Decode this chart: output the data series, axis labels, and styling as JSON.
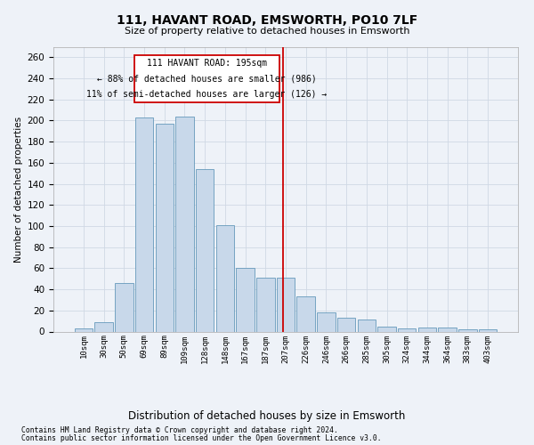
{
  "title": "111, HAVANT ROAD, EMSWORTH, PO10 7LF",
  "subtitle": "Size of property relative to detached houses in Emsworth",
  "xlabel": "Distribution of detached houses by size in Emsworth",
  "ylabel": "Number of detached properties",
  "bar_color": "#c8d8ea",
  "bar_edge_color": "#6699bb",
  "grid_color": "#d0d8e4",
  "bg_color": "#eef2f8",
  "vline_color": "#cc0000",
  "annotation_text_line1": "111 HAVANT ROAD: 195sqm",
  "annotation_text_line2": "← 88% of detached houses are smaller (986)",
  "annotation_text_line3": "11% of semi-detached houses are larger (126) →",
  "annotation_box_color": "#cc0000",
  "categories": [
    "10sqm",
    "30sqm",
    "50sqm",
    "69sqm",
    "89sqm",
    "109sqm",
    "128sqm",
    "148sqm",
    "167sqm",
    "187sqm",
    "207sqm",
    "226sqm",
    "246sqm",
    "266sqm",
    "285sqm",
    "305sqm",
    "324sqm",
    "344sqm",
    "364sqm",
    "383sqm",
    "403sqm"
  ],
  "values": [
    3,
    9,
    46,
    203,
    197,
    204,
    154,
    101,
    60,
    51,
    51,
    33,
    18,
    13,
    11,
    5,
    3,
    4,
    4,
    2,
    2
  ],
  "ylim": [
    0,
    270
  ],
  "yticks": [
    0,
    20,
    40,
    60,
    80,
    100,
    120,
    140,
    160,
    180,
    200,
    220,
    240,
    260
  ],
  "footer1": "Contains HM Land Registry data © Crown copyright and database right 2024.",
  "footer2": "Contains public sector information licensed under the Open Government Licence v3.0."
}
